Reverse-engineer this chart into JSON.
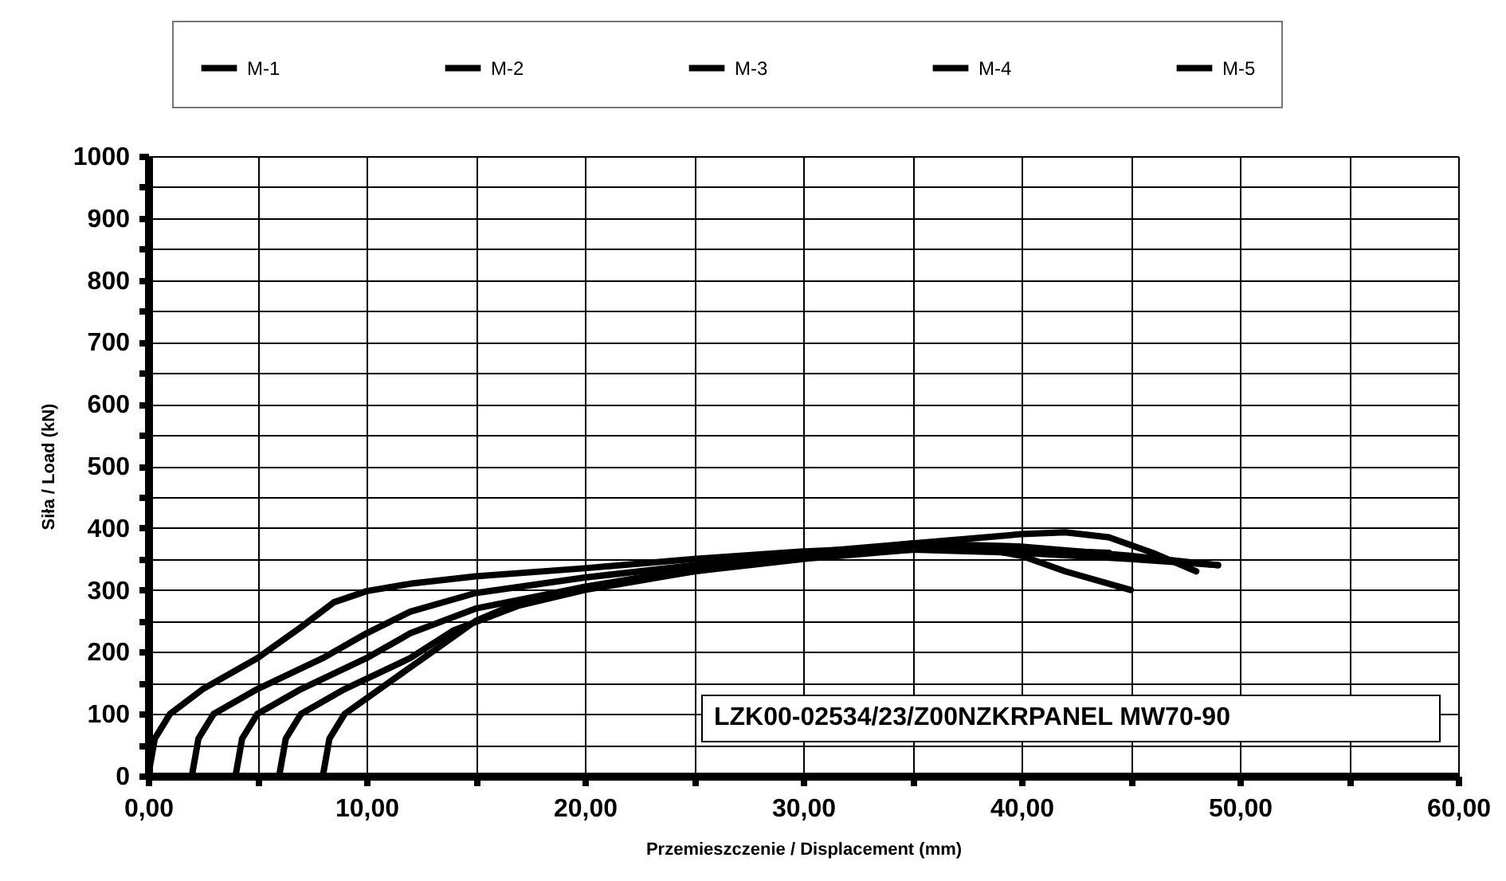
{
  "chart_data": {
    "type": "line",
    "xlabel": "Przemieszczenie / Displacement (mm)",
    "ylabel": "Siła / Load (kN)",
    "annotations": [
      "LZK00-02534/23/Z00NZKRPANEL  MW70-90"
    ],
    "xlim": [
      0,
      60
    ],
    "ylim": [
      0,
      1000
    ],
    "xticks": [
      {
        "value": 0,
        "label": "0,00"
      },
      {
        "value": 5,
        "label": null
      },
      {
        "value": 10,
        "label": "10,00"
      },
      {
        "value": 15,
        "label": null
      },
      {
        "value": 20,
        "label": "20,00"
      },
      {
        "value": 25,
        "label": null
      },
      {
        "value": 30,
        "label": "30,00"
      },
      {
        "value": 35,
        "label": null
      },
      {
        "value": 40,
        "label": "40,00"
      },
      {
        "value": 45,
        "label": null
      },
      {
        "value": 50,
        "label": "50,00"
      },
      {
        "value": 55,
        "label": null
      },
      {
        "value": 60,
        "label": "60,00"
      }
    ],
    "yticks": [
      0,
      {
        "value": 50,
        "label": null
      },
      100,
      {
        "value": 150,
        "label": null
      },
      200,
      {
        "value": 250,
        "label": null
      },
      300,
      {
        "value": 350,
        "label": null
      },
      400,
      {
        "value": 450,
        "label": null
      },
      500,
      {
        "value": 550,
        "label": null
      },
      600,
      {
        "value": 650,
        "label": null
      },
      700,
      {
        "value": 750,
        "label": null
      },
      800,
      {
        "value": 850,
        "label": null
      },
      900,
      {
        "value": 950,
        "label": null
      },
      1000
    ],
    "grid": true,
    "legend": "top",
    "line_style": "solid",
    "marker": "none",
    "series": [
      {
        "name": "M-1",
        "color": "#000000",
        "x": [
          0,
          0.3,
          1,
          2.5,
          5,
          7,
          8.5,
          10,
          12,
          15,
          20,
          25,
          30,
          35,
          38,
          40,
          42,
          45
        ],
        "values": [
          0,
          60,
          100,
          140,
          190,
          240,
          280,
          298,
          310,
          322,
          335,
          350,
          362,
          370,
          368,
          355,
          330,
          300
        ]
      },
      {
        "name": "M-2",
        "color": "#000000",
        "x": [
          2,
          2.3,
          3,
          5,
          8,
          10,
          12,
          15,
          20,
          25,
          30,
          35,
          40,
          44
        ],
        "values": [
          0,
          60,
          100,
          140,
          190,
          230,
          265,
          295,
          320,
          340,
          355,
          365,
          365,
          360
        ]
      },
      {
        "name": "M-3",
        "color": "#000000",
        "x": [
          4,
          4.3,
          5,
          7,
          10,
          12,
          15,
          20,
          25,
          30,
          35,
          40,
          45,
          49
        ],
        "values": [
          0,
          60,
          100,
          140,
          190,
          230,
          270,
          305,
          330,
          350,
          365,
          360,
          350,
          340
        ]
      },
      {
        "name": "M-4",
        "color": "#000000",
        "x": [
          6,
          6.3,
          7,
          9,
          12,
          14,
          17,
          20,
          25,
          30,
          35,
          40,
          42,
          44,
          46,
          48
        ],
        "values": [
          0,
          60,
          100,
          140,
          190,
          235,
          275,
          300,
          330,
          355,
          375,
          390,
          393,
          385,
          360,
          330
        ]
      },
      {
        "name": "M-5",
        "color": "#000000",
        "x": [
          8,
          8.3,
          9,
          11,
          13,
          15,
          17,
          20,
          25,
          30,
          35,
          40,
          45,
          49
        ],
        "values": [
          0,
          60,
          100,
          150,
          200,
          250,
          280,
          305,
          335,
          360,
          375,
          370,
          355,
          340
        ]
      }
    ]
  }
}
